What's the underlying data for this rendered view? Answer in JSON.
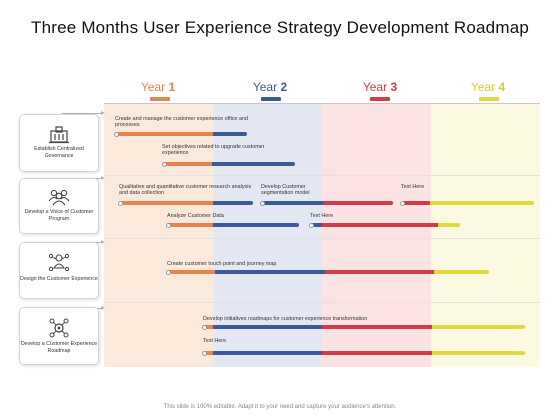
{
  "title": "Three Months User Experience Strategy Development Roadmap",
  "colors": {
    "year1": "#e8834f",
    "year2": "#3a5a9a",
    "year3": "#d23b4b",
    "year4": "#e0d83c",
    "band1": "#fbe9dc",
    "band2": "#e3e8f3",
    "band3": "#fbe3e4",
    "band4": "#fbf9e2"
  },
  "years": [
    {
      "prefix": "Year",
      "number": "1"
    },
    {
      "prefix": "Year",
      "number": "2"
    },
    {
      "prefix": "Year",
      "number": "3"
    },
    {
      "prefix": "Year",
      "number": "4"
    }
  ],
  "rows": [
    {
      "label": "Establish Centralized Governance",
      "icon": "governance-building-icon"
    },
    {
      "label": "Develop a Voice of Customer Program",
      "icon": "customer-group-icon"
    },
    {
      "label": "Design the Customer Experience",
      "icon": "customer-journey-icon"
    },
    {
      "label": "Develop a Customer Experience Roadmap",
      "icon": "roadmap-gears-icon"
    }
  ],
  "tasks": [
    {
      "label": "Create and manage the customer experience office and processes",
      "start_year": 1.0,
      "end_year": 2.3
    },
    {
      "label": "Set objectives related to upgrade customer experience",
      "start_year": 1.5,
      "end_year": 2.7
    },
    {
      "label": "Qualitative and quantitative customer research analysis and data collection",
      "start_year": 1.0,
      "end_year": 2.4
    },
    {
      "label": "Develop Customer segmentation model",
      "start_year": 2.4,
      "end_year": 3.3
    },
    {
      "label": "Text Here",
      "start_year": 3.4,
      "end_year": 4.5
    },
    {
      "label": "Analyze Customer Data",
      "start_year": 1.5,
      "end_year": 2.5
    },
    {
      "label": "Text Here",
      "start_year": 2.6,
      "end_year": 4.0
    },
    {
      "label": "Create customer touch point and journey map",
      "start_year": 1.5,
      "end_year": 4.2
    },
    {
      "label": "Develop initiatives roadmaps for customer experience transformation",
      "start_year": 1.9,
      "end_year": 4.4
    },
    {
      "label": "Text Here",
      "start_year": 1.9,
      "end_year": 4.4
    }
  ],
  "footer": "This slide is 100% editable. Adapt it to your need and capture your audience's attention."
}
